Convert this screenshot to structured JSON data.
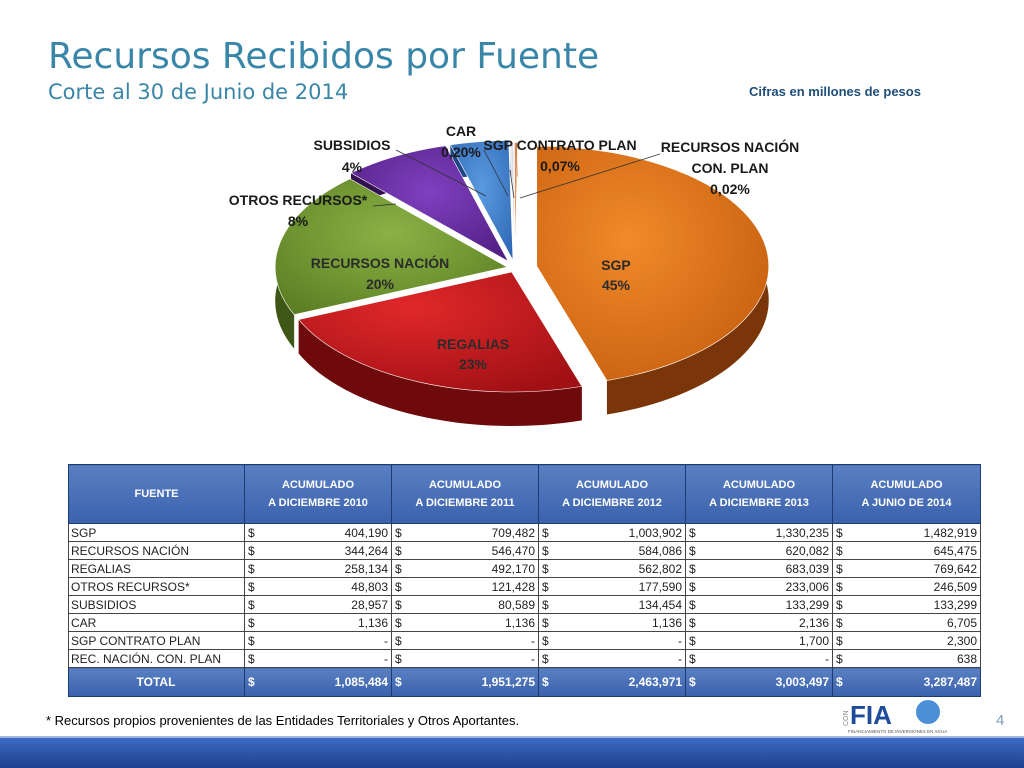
{
  "header": {
    "title": "Recursos Recibidos por Fuente",
    "subtitle": "Corte al 30 de Junio de 2014",
    "units_note": "Cifras en millones de pesos"
  },
  "chart_data": {
    "type": "pie",
    "slices": [
      {
        "name": "SGP",
        "label": "SGP",
        "pct_label": "45%",
        "value": 1482919,
        "color": "#d96a14"
      },
      {
        "name": "REGALIAS",
        "label": "REGALIAS",
        "pct_label": "23%",
        "value": 769642,
        "color": "#c0191c"
      },
      {
        "name": "RECURSOS NACIÓN",
        "label": "RECURSOS NACIÓN",
        "pct_label": "20%",
        "value": 645475,
        "color": "#6e9a2e"
      },
      {
        "name": "OTROS RECURSOS*",
        "label": "OTROS RECURSOS*",
        "pct_label": "8%",
        "value": 246509,
        "color": "#6a2aa0"
      },
      {
        "name": "SUBSIDIOS",
        "label": "SUBSIDIOS",
        "pct_label": "4%",
        "value": 133299,
        "color": "#3b7fd1"
      },
      {
        "name": "CAR",
        "label": "CAR",
        "pct_label": "0,20%",
        "value": 6705,
        "color": "#d9dfe8"
      },
      {
        "name": "SGP CONTRATO PLAN",
        "label": "SGP CONTRATO PLAN",
        "pct_label": "0,07%",
        "value": 2300,
        "color": "#b0c4e8"
      },
      {
        "name": "RECURSOS NACIÓN CON. PLAN",
        "label_line1": "RECURSOS NACIÓN",
        "label_line2": "CON. PLAN",
        "pct_label": "0,02%",
        "value": 638,
        "color": "#e07a30"
      }
    ]
  },
  "table": {
    "headers": [
      {
        "line1": "FUENTE",
        "line2": ""
      },
      {
        "line1": "ACUMULADO",
        "line2": "A DICIEMBRE 2010"
      },
      {
        "line1": "ACUMULADO",
        "line2": "A DICIEMBRE 2011"
      },
      {
        "line1": "ACUMULADO",
        "line2": "A DICIEMBRE 2012"
      },
      {
        "line1": "ACUMULADO",
        "line2": "A DICIEMBRE 2013"
      },
      {
        "line1": "ACUMULADO",
        "line2": "A JUNIO DE 2014"
      }
    ],
    "currency": "$",
    "rows": [
      {
        "name": "SGP",
        "values": [
          "404,190",
          "709,482",
          "1,003,902",
          "1,330,235",
          "1,482,919"
        ]
      },
      {
        "name": "RECURSOS NACIÓN",
        "values": [
          "344,264",
          "546,470",
          "584,086",
          "620,082",
          "645,475"
        ]
      },
      {
        "name": "REGALIAS",
        "values": [
          "258,134",
          "492,170",
          "562,802",
          "683,039",
          "769,642"
        ]
      },
      {
        "name": "OTROS RECURSOS*",
        "values": [
          "48,803",
          "121,428",
          "177,590",
          "233,006",
          "246,509"
        ]
      },
      {
        "name": "SUBSIDIOS",
        "values": [
          "28,957",
          "80,589",
          "134,454",
          "133,299",
          "133,299"
        ]
      },
      {
        "name": "CAR",
        "values": [
          "1,136",
          "1,136",
          "1,136",
          "2,136",
          "6,705"
        ]
      },
      {
        "name": "SGP CONTRATO PLAN",
        "values": [
          "-",
          "-",
          "-",
          "1,700",
          "2,300"
        ]
      },
      {
        "name": "REC. NACIÓN.  CON. PLAN",
        "values": [
          "-",
          "-",
          "-",
          "-",
          "638"
        ]
      }
    ],
    "total": {
      "name": "TOTAL",
      "values": [
        "1,085,484",
        "1,951,275",
        "2,463,971",
        "3,003,497",
        "3,287,487"
      ]
    }
  },
  "footer": {
    "footnote": "* Recursos propios provenientes de  las Entidades Territoriales y Otros Aportantes.",
    "page_number": "4",
    "logo_text": "FINANCIAMIENTO DE INVERSIONES EN AGUA",
    "logo_prefix": "CON",
    "logo_brand": "FIA"
  }
}
